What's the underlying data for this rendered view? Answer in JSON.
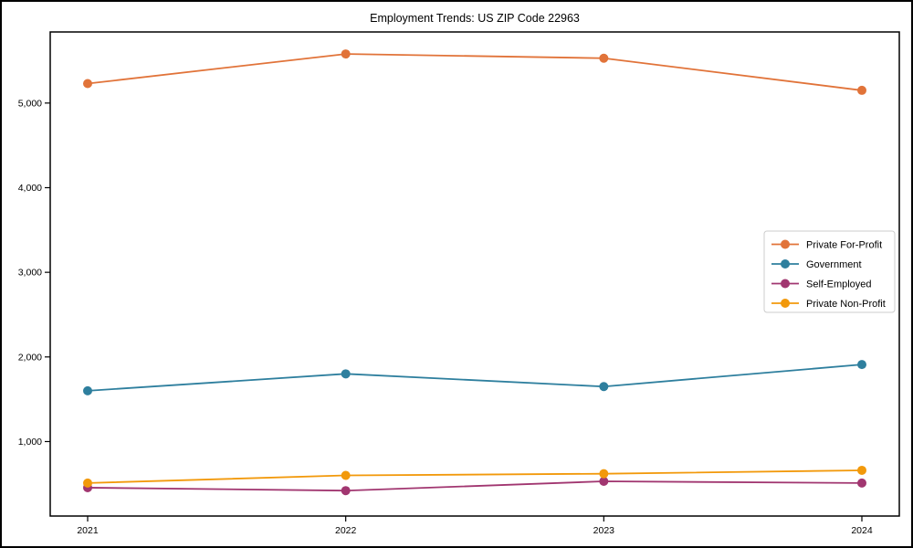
{
  "chart_data": {
    "type": "line",
    "title": "Employment Trends: US ZIP Code 22963",
    "categories": [
      "2021",
      "2022",
      "2023",
      "2024"
    ],
    "series": [
      {
        "name": "Private For-Profit",
        "color": "#E17339",
        "values": [
          5230,
          5580,
          5530,
          5150
        ]
      },
      {
        "name": "Government",
        "color": "#2E7F9E",
        "values": [
          1600,
          1800,
          1650,
          1910
        ]
      },
      {
        "name": "Self-Employed",
        "color": "#A13670",
        "values": [
          455,
          420,
          530,
          510
        ]
      },
      {
        "name": "Private Non-Profit",
        "color": "#F2990B",
        "values": [
          510,
          600,
          620,
          660
        ]
      }
    ],
    "yticks": [
      1000,
      2000,
      3000,
      4000,
      5000
    ],
    "ytick_labels": [
      "1,000",
      "2,000",
      "3,000",
      "4,000",
      "5,000"
    ],
    "ylim": [
      120,
      5840
    ],
    "xlabel": "",
    "ylabel": "",
    "grid": false,
    "legend_position": "center right",
    "marker": "circle",
    "axis_color": "#000000",
    "legend_border_color": "#cccccc",
    "background_color": "#ffffff"
  }
}
